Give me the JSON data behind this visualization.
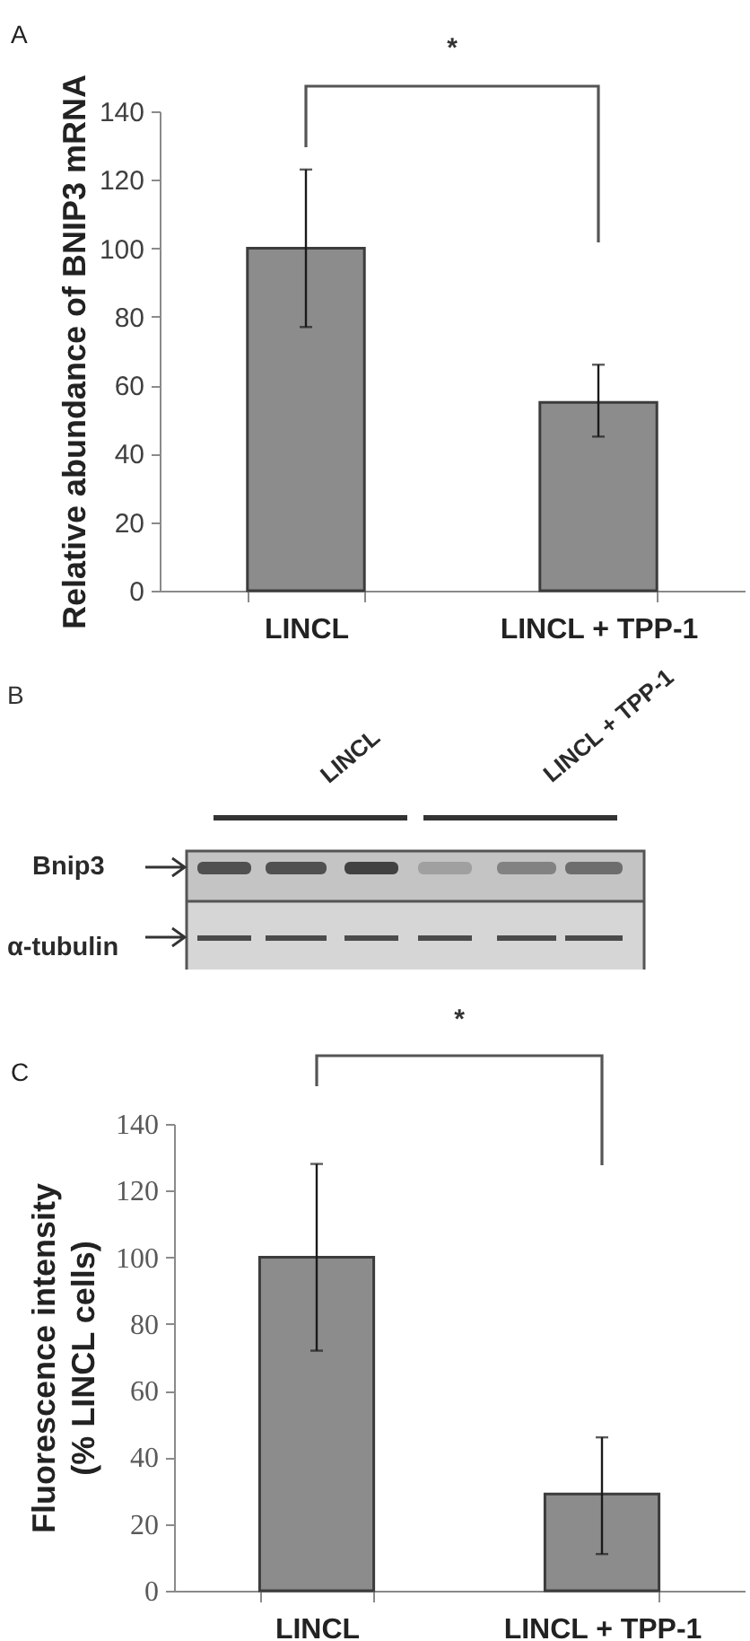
{
  "chart_data": [
    {
      "type": "bar",
      "title": "A",
      "ylabel": "Relative abundance of BNIP3 mRNA",
      "categories": [
        "LINCL",
        "LINCL + TPP-1"
      ],
      "values": [
        100,
        55
      ],
      "errors": [
        [
          77,
          123
        ],
        [
          45,
          66
        ]
      ],
      "color": "#8c8c8c",
      "ylim": [
        0,
        140
      ],
      "yticks": [
        0,
        20,
        40,
        60,
        80,
        100,
        120,
        140
      ],
      "grid": false,
      "annotations": [
        "*"
      ]
    },
    {
      "type": "other",
      "title": "B",
      "annotations": [
        "LINCL",
        "LINCL + TPP-1",
        "Bnip3",
        "α-tubulin"
      ]
    },
    {
      "type": "bar",
      "title": "C",
      "ylabel": "Fluorescence intensity\n(% LINCL cells)",
      "categories": [
        "LINCL",
        "LINCL + TPP-1"
      ],
      "values": [
        100,
        29
      ],
      "errors": [
        [
          72,
          128
        ],
        [
          11,
          46
        ]
      ],
      "color": "#8c8c8c",
      "ylim": [
        0,
        140
      ],
      "yticks": [
        0,
        20,
        40,
        60,
        80,
        100,
        120,
        140
      ],
      "grid": false,
      "annotations": [
        "*"
      ]
    }
  ]
}
